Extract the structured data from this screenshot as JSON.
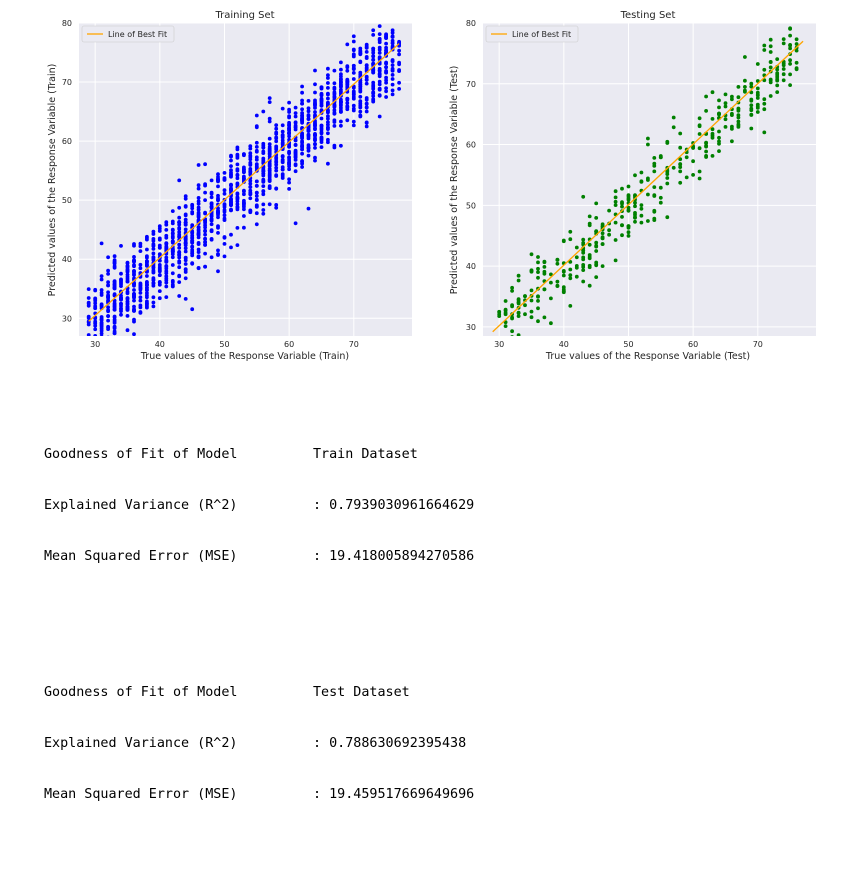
{
  "charts": [
    {
      "title": "Training Set",
      "xlabel": "True values of the Response Variable (Train)",
      "ylabel": "Predicted values of the Response Variable (Train)",
      "legend": "Line of Best Fit"
    },
    {
      "title": "Testing Set",
      "xlabel": "True values of the Response Variable (Test)",
      "ylabel": "Predicted values of the Response Variable (Test)",
      "legend": "Line of Best Fit"
    }
  ],
  "chart_data": [
    {
      "type": "scatter",
      "title": "Training Set",
      "xlabel": "True values of the Response Variable (Train)",
      "ylabel": "Predicted values of the Response Variable (Train)",
      "xlim": [
        27.5,
        79
      ],
      "ylim": [
        27,
        80
      ],
      "xticks": [
        30,
        40,
        50,
        60,
        70
      ],
      "yticks": [
        30,
        40,
        50,
        60,
        70,
        80
      ],
      "grid": true,
      "legend_position": "top-left",
      "series": [
        {
          "kind": "scatter",
          "color": "#0000ff",
          "x_range": [
            29,
            77
          ],
          "spread": 7.5,
          "count": 1500
        },
        {
          "name": "Line of Best Fit",
          "kind": "line",
          "color": "#ffa500",
          "x": [
            29,
            77
          ],
          "y": [
            29.5,
            76.5
          ]
        }
      ]
    },
    {
      "type": "scatter",
      "title": "Testing Set",
      "xlabel": "True values of the Response Variable (Test)",
      "ylabel": "Predicted values of the Response Variable (Test)",
      "xlim": [
        27.5,
        79
      ],
      "ylim": [
        28.5,
        80
      ],
      "xticks": [
        30,
        40,
        50,
        60,
        70
      ],
      "yticks": [
        30,
        40,
        50,
        60,
        70,
        80
      ],
      "grid": true,
      "legend_position": "top-left",
      "series": [
        {
          "kind": "scatter",
          "color": "#008000",
          "x_range": [
            29,
            77
          ],
          "spread": 7,
          "count": 420
        },
        {
          "name": "Line of Best Fit",
          "kind": "line",
          "color": "#ffa500",
          "x": [
            29,
            77
          ],
          "y": [
            29.2,
            77
          ]
        }
      ]
    }
  ],
  "output": {
    "train": {
      "header_left": "Goodness of Fit of Model",
      "header_right": "Train Dataset",
      "ev_label": "Explained Variance (R^2)",
      "ev_value": ": 0.7939030961664629",
      "mse_label": "Mean Squared Error (MSE)",
      "mse_value": ": 19.418005894270586"
    },
    "test": {
      "header_left": "Goodness of Fit of Model",
      "header_right": "Test Dataset",
      "ev_label": "Explained Variance (R^2)",
      "ev_value": ": 0.788630692395438",
      "mse_label": "Mean Squared Error (MSE)",
      "mse_value": ": 19.459517669649696"
    }
  }
}
